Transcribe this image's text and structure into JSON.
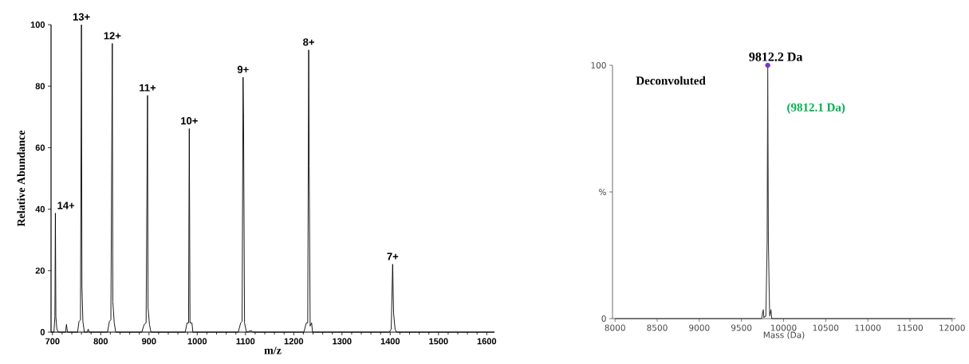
{
  "chart_data": [
    {
      "type": "line",
      "xlabel": "m/z",
      "ylabel": "Relative Abundance",
      "color": "#000000",
      "x": [
        697,
        703,
        705,
        706,
        707,
        709,
        712,
        727,
        729,
        731,
        752,
        755,
        758,
        760,
        761,
        763,
        766,
        772,
        774,
        776,
        814,
        818,
        821,
        824,
        825,
        828,
        831,
        885,
        890,
        894,
        897,
        898,
        901,
        904,
        975,
        979,
        982,
        983.5,
        985,
        989,
        991,
        1085,
        1090,
        1093,
        1095,
        1096,
        1098,
        1102,
        1112,
        1115,
        1221,
        1226,
        1229,
        1231,
        1232,
        1234,
        1237,
        1239,
        1398,
        1402,
        1405,
        1407,
        1410,
        1413,
        1616
      ],
      "values": [
        0,
        0,
        5,
        38.7,
        5,
        1,
        0,
        0,
        2.5,
        0,
        0,
        3.5,
        4,
        100,
        15,
        3.5,
        0,
        0,
        1,
        0,
        0,
        3.5,
        4,
        93.9,
        10,
        3,
        0,
        0,
        2.5,
        3,
        77,
        8,
        2.5,
        0,
        0,
        3,
        3,
        66.2,
        3,
        3,
        0,
        0,
        3,
        3.5,
        82.9,
        69,
        3,
        0,
        0.5,
        0,
        0,
        3,
        3,
        91.8,
        54,
        2,
        3,
        0,
        0,
        1,
        22.1,
        6,
        1,
        0,
        0
      ],
      "xlim": [
        697,
        1616
      ],
      "ylim": [
        0,
        100
      ],
      "xticks": [
        700,
        800,
        900,
        1000,
        1100,
        1200,
        1300,
        1400,
        1500,
        1600
      ],
      "yticks": [
        0,
        20,
        40,
        60,
        80,
        100
      ],
      "annotations": [
        {
          "text": "14+",
          "x": 706,
          "y": 38.7
        },
        {
          "text": "13+",
          "x": 760,
          "y": 100
        },
        {
          "text": "12+",
          "x": 824,
          "y": 93.9
        },
        {
          "text": "11+",
          "x": 897,
          "y": 77
        },
        {
          "text": "10+",
          "x": 983.5,
          "y": 66.2
        },
        {
          "text": "9+",
          "x": 1095,
          "y": 82.9
        },
        {
          "text": "8+",
          "x": 1231,
          "y": 91.8
        },
        {
          "text": "7+",
          "x": 1405,
          "y": 22.1
        }
      ]
    },
    {
      "type": "line",
      "xlabel": "Mass (Da)",
      "series": [
        {
          "type": "line",
          "color": "#3c3c3c",
          "x": [
            8000,
            9740,
            9755,
            9760,
            9765,
            9790,
            9805,
            9812.2,
            9820,
            9835,
            9850,
            9860,
            12000
          ],
          "values": [
            0,
            0,
            3,
            3.5,
            0.5,
            1,
            30,
            100,
            30,
            1,
            3.5,
            0,
            0
          ]
        },
        {
          "type": "scatter",
          "color": "#7b2fd6",
          "x": [
            9812.2
          ],
          "values": [
            100
          ]
        }
      ],
      "xlim": [
        7970,
        12040
      ],
      "ylim": [
        0,
        100
      ],
      "xticks": [
        8000,
        8500,
        9000,
        9500,
        10000,
        10500,
        11000,
        11500,
        12000
      ],
      "yticks": [
        0,
        {
          "value": 50,
          "label": "%"
        },
        100
      ],
      "annotations": [
        {
          "text": "9812.2 Da",
          "x": 9812.2,
          "y": 100
        },
        "Deconvoluted",
        "(9812.1 Da)"
      ]
    }
  ]
}
